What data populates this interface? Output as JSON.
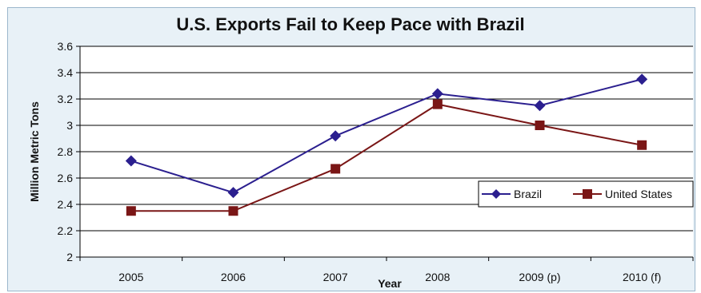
{
  "chart_data": {
    "type": "line",
    "title": "U.S. Exports Fail to Keep Pace with Brazil",
    "xlabel": "Year",
    "ylabel": "Million Metric Tons",
    "categories": [
      "2005",
      "2006",
      "2007",
      "2008",
      "2009 (p)",
      "2010 (f)"
    ],
    "ylim": [
      2,
      3.6
    ],
    "yticks": [
      "2",
      "2.2",
      "2.4",
      "2.6",
      "2.8",
      "3",
      "3.2",
      "3.4",
      "3.6"
    ],
    "grid": true,
    "legend_position": "right",
    "series": [
      {
        "name": "Brazil",
        "values": [
          2.73,
          2.49,
          2.92,
          3.24,
          3.15,
          3.35
        ],
        "color": "#2b1f8f",
        "marker": "diamond"
      },
      {
        "name": "United States",
        "values": [
          2.35,
          2.35,
          2.67,
          3.16,
          3.0,
          2.85
        ],
        "color": "#7a1616",
        "marker": "square"
      }
    ]
  }
}
